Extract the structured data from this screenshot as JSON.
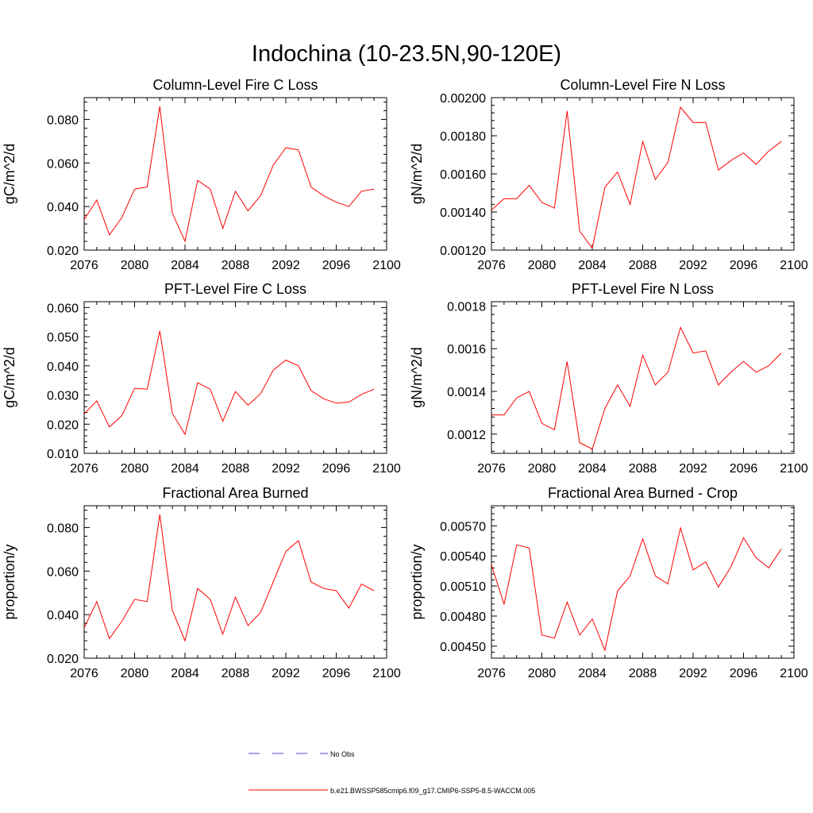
{
  "title": "Indochina (10-23.5N,90-120E)",
  "colors": {
    "series": "#ff0000",
    "obs": "#4a4ad0",
    "axis": "#000000"
  },
  "legend": {
    "obs_label": "No Obs",
    "model_label": "b.e21.BWSSP585cmip6.f09_g17.CMIP6-SSP5-8.5-WACCM.005"
  },
  "chart_data": [
    {
      "type": "line",
      "title": "Column-Level Fire C Loss",
      "ylabel": "gC/m^2/d",
      "xlabel": "",
      "xlim": [
        2076,
        2100
      ],
      "ylim": [
        0.02,
        0.09
      ],
      "xticks": [
        2076,
        2080,
        2084,
        2088,
        2092,
        2096,
        2100
      ],
      "yticks": [
        0.02,
        0.04,
        0.06,
        0.08
      ],
      "ytick_labels": [
        "0.020",
        "0.040",
        "0.060",
        "0.080"
      ],
      "series": [
        {
          "name": "b.e21.BWSSP585cmip6.f09_g17.CMIP6-SSP5-8.5-WACCM.005",
          "x": [
            2076,
            2077,
            2078,
            2079,
            2080,
            2081,
            2082,
            2083,
            2084,
            2085,
            2086,
            2087,
            2088,
            2089,
            2090,
            2091,
            2092,
            2093,
            2094,
            2095,
            2096,
            2097,
            2098,
            2099
          ],
          "values": [
            0.034,
            0.043,
            0.027,
            0.035,
            0.048,
            0.049,
            0.086,
            0.037,
            0.024,
            0.052,
            0.048,
            0.03,
            0.047,
            0.038,
            0.045,
            0.059,
            0.067,
            0.066,
            0.049,
            0.045,
            0.042,
            0.04,
            0.047,
            0.048
          ]
        }
      ]
    },
    {
      "type": "line",
      "title": "Column-Level Fire N Loss",
      "ylabel": "gN/m^2/d",
      "xlabel": "",
      "xlim": [
        2076,
        2100
      ],
      "ylim": [
        0.0012,
        0.002
      ],
      "xticks": [
        2076,
        2080,
        2084,
        2088,
        2092,
        2096,
        2100
      ],
      "yticks": [
        0.0012,
        0.0014,
        0.0016,
        0.0018,
        0.002
      ],
      "ytick_labels": [
        "0.00120",
        "0.00140",
        "0.00160",
        "0.00180",
        "0.00200"
      ],
      "series": [
        {
          "name": "b.e21.BWSSP585cmip6.f09_g17.CMIP6-SSP5-8.5-WACCM.005",
          "x": [
            2076,
            2077,
            2078,
            2079,
            2080,
            2081,
            2082,
            2083,
            2084,
            2085,
            2086,
            2087,
            2088,
            2089,
            2090,
            2091,
            2092,
            2093,
            2094,
            2095,
            2096,
            2097,
            2098,
            2099
          ],
          "values": [
            0.00141,
            0.00147,
            0.00147,
            0.00154,
            0.00145,
            0.00142,
            0.00193,
            0.0013,
            0.00121,
            0.00153,
            0.00161,
            0.00144,
            0.00177,
            0.00157,
            0.00166,
            0.00195,
            0.00187,
            0.00187,
            0.00162,
            0.00167,
            0.00171,
            0.00165,
            0.00172,
            0.00177
          ]
        }
      ]
    },
    {
      "type": "line",
      "title": "PFT-Level Fire C Loss",
      "ylabel": "gC/m^2/d",
      "xlabel": "",
      "xlim": [
        2076,
        2100
      ],
      "ylim": [
        0.01,
        0.062
      ],
      "xticks": [
        2076,
        2080,
        2084,
        2088,
        2092,
        2096,
        2100
      ],
      "yticks": [
        0.01,
        0.02,
        0.03,
        0.04,
        0.05,
        0.06
      ],
      "ytick_labels": [
        "0.010",
        "0.020",
        "0.030",
        "0.040",
        "0.050",
        "0.060"
      ],
      "series": [
        {
          "name": "b.e21.BWSSP585cmip6.f09_g17.CMIP6-SSP5-8.5-WACCM.005",
          "x": [
            2076,
            2077,
            2078,
            2079,
            2080,
            2081,
            2082,
            2083,
            2084,
            2085,
            2086,
            2087,
            2088,
            2089,
            2090,
            2091,
            2092,
            2093,
            2094,
            2095,
            2096,
            2097,
            2098,
            2099
          ],
          "values": [
            0.0235,
            0.028,
            0.019,
            0.023,
            0.0323,
            0.032,
            0.052,
            0.0237,
            0.0165,
            0.0342,
            0.032,
            0.021,
            0.0312,
            0.0265,
            0.0305,
            0.0385,
            0.042,
            0.04,
            0.0315,
            0.0287,
            0.0272,
            0.0276,
            0.0302,
            0.032
          ]
        }
      ]
    },
    {
      "type": "line",
      "title": "PFT-Level Fire N Loss",
      "ylabel": "gN/m^2/d",
      "xlabel": "",
      "xlim": [
        2076,
        2100
      ],
      "ylim": [
        0.00111,
        0.00182
      ],
      "xticks": [
        2076,
        2080,
        2084,
        2088,
        2092,
        2096,
        2100
      ],
      "yticks": [
        0.0012,
        0.0014,
        0.0016,
        0.0018
      ],
      "ytick_labels": [
        "0.0012",
        "0.0014",
        "0.0016",
        "0.0018"
      ],
      "series": [
        {
          "name": "b.e21.BWSSP585cmip6.f09_g17.CMIP6-SSP5-8.5-WACCM.005",
          "x": [
            2076,
            2077,
            2078,
            2079,
            2080,
            2081,
            2082,
            2083,
            2084,
            2085,
            2086,
            2087,
            2088,
            2089,
            2090,
            2091,
            2092,
            2093,
            2094,
            2095,
            2096,
            2097,
            2098,
            2099
          ],
          "values": [
            0.00129,
            0.00129,
            0.00137,
            0.0014,
            0.00125,
            0.00122,
            0.00154,
            0.00116,
            0.00113,
            0.00132,
            0.00143,
            0.00133,
            0.00157,
            0.00143,
            0.00149,
            0.0017,
            0.00158,
            0.00159,
            0.00143,
            0.00149,
            0.00154,
            0.00149,
            0.00152,
            0.00158
          ]
        }
      ]
    },
    {
      "type": "line",
      "title": "Fractional Area Burned",
      "ylabel": "proportion/y",
      "xlabel": "",
      "xlim": [
        2076,
        2100
      ],
      "ylim": [
        0.02,
        0.09
      ],
      "xticks": [
        2076,
        2080,
        2084,
        2088,
        2092,
        2096,
        2100
      ],
      "yticks": [
        0.02,
        0.04,
        0.06,
        0.08
      ],
      "ytick_labels": [
        "0.020",
        "0.040",
        "0.060",
        "0.080"
      ],
      "series": [
        {
          "name": "b.e21.BWSSP585cmip6.f09_g17.CMIP6-SSP5-8.5-WACCM.005",
          "x": [
            2076,
            2077,
            2078,
            2079,
            2080,
            2081,
            2082,
            2083,
            2084,
            2085,
            2086,
            2087,
            2088,
            2089,
            2090,
            2091,
            2092,
            2093,
            2094,
            2095,
            2096,
            2097,
            2098,
            2099
          ],
          "values": [
            0.034,
            0.046,
            0.029,
            0.037,
            0.047,
            0.046,
            0.086,
            0.042,
            0.028,
            0.052,
            0.047,
            0.031,
            0.048,
            0.035,
            0.041,
            0.055,
            0.069,
            0.074,
            0.055,
            0.052,
            0.051,
            0.043,
            0.054,
            0.051
          ]
        }
      ]
    },
    {
      "type": "line",
      "title": "Fractional Area Burned - Crop",
      "ylabel": "proportion/y",
      "xlabel": "",
      "xlim": [
        2076,
        2100
      ],
      "ylim": [
        0.00438,
        0.0059
      ],
      "xticks": [
        2076,
        2080,
        2084,
        2088,
        2092,
        2096,
        2100
      ],
      "yticks": [
        0.0045,
        0.0048,
        0.0051,
        0.0054,
        0.0057
      ],
      "ytick_labels": [
        "0.00450",
        "0.00480",
        "0.00510",
        "0.00540",
        "0.00570"
      ],
      "series": [
        {
          "name": "b.e21.BWSSP585cmip6.f09_g17.CMIP6-SSP5-8.5-WACCM.005",
          "x": [
            2076,
            2077,
            2078,
            2079,
            2080,
            2081,
            2082,
            2083,
            2084,
            2085,
            2086,
            2087,
            2088,
            2089,
            2090,
            2091,
            2092,
            2093,
            2094,
            2095,
            2096,
            2097,
            2098,
            2099
          ],
          "values": [
            0.00531,
            0.00492,
            0.00551,
            0.00548,
            0.00461,
            0.00458,
            0.00494,
            0.00461,
            0.00477,
            0.00446,
            0.00505,
            0.0052,
            0.00557,
            0.0052,
            0.00512,
            0.00568,
            0.00526,
            0.00534,
            0.00509,
            0.00529,
            0.00558,
            0.00538,
            0.00528,
            0.00547
          ]
        }
      ]
    }
  ]
}
